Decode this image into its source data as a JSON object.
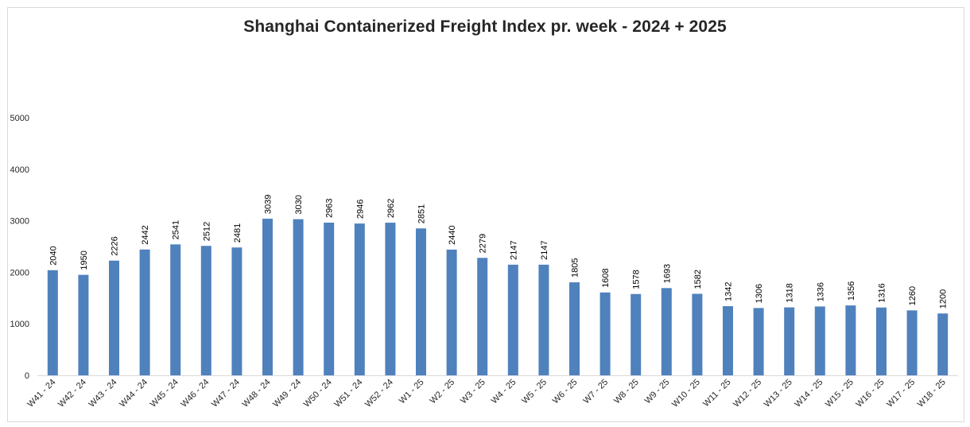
{
  "chart_data": {
    "type": "bar",
    "title": "Shanghai Containerized Freight Index pr. week - 2024 + 2025",
    "xlabel": "",
    "ylabel": "",
    "ylim": [
      0,
      5000
    ],
    "y_ticks": [
      0,
      1000,
      2000,
      3000,
      4000,
      5000
    ],
    "grid": false,
    "legend": "none",
    "bar_color": "#4f81bd",
    "categories": [
      "W41 - 24",
      "W42 - 24",
      "W43 - 24",
      "W44 - 24",
      "W45 - 24",
      "W46 - 24",
      "W47 - 24",
      "W48 - 24",
      "W49 - 24",
      "W50 - 24",
      "W51 - 24",
      "W52 - 24",
      "W1 - 25",
      "W2 - 25",
      "W3 - 25",
      "W4 - 25",
      "W5 - 25",
      "W6 - 25",
      "W7 - 25",
      "W8 - 25",
      "W9 - 25",
      "W10 - 25",
      "W11 - 25",
      "W12 - 25",
      "W13 - 25",
      "W14 - 25",
      "W15 - 25",
      "W16 - 25",
      "W17 - 25",
      "W18 - 25"
    ],
    "values": [
      2040,
      1950,
      2226,
      2442,
      2541,
      2512,
      2481,
      3039,
      3030,
      2963,
      2946,
      2962,
      2851,
      2440,
      2279,
      2147,
      2147,
      1805,
      1608,
      1578,
      1693,
      1582,
      1342,
      1306,
      1318,
      1336,
      1356,
      1316,
      1260,
      1200
    ]
  }
}
